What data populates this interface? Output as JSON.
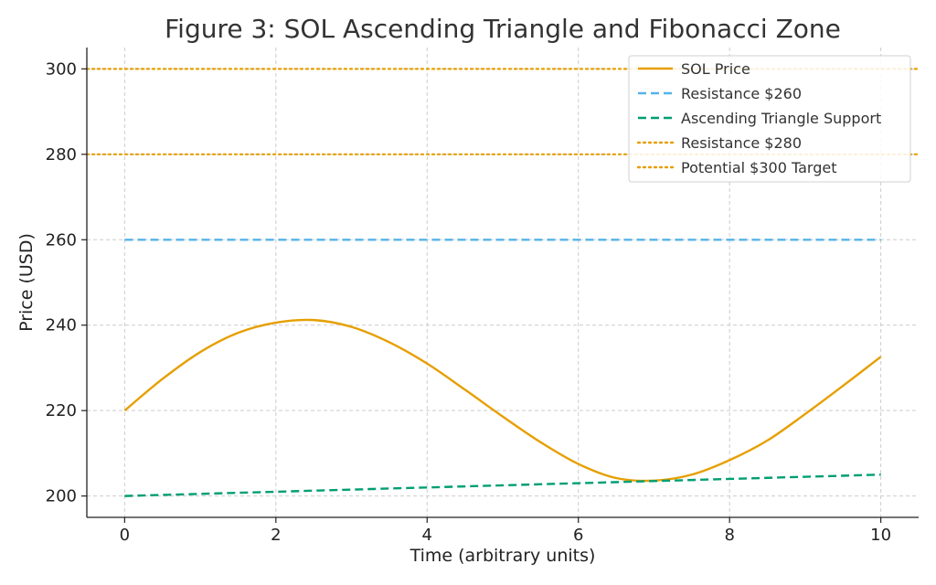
{
  "chart_data": {
    "type": "line",
    "title": "Figure 3: SOL Ascending Triangle and Fibonacci Zone",
    "xlabel": "Time (arbitrary units)",
    "ylabel": "Price (USD)",
    "xlim": [
      -0.5,
      10.5
    ],
    "ylim": [
      195,
      305
    ],
    "xticks": [
      0,
      2,
      4,
      6,
      8,
      10
    ],
    "yticks": [
      200,
      220,
      240,
      260,
      280,
      300
    ],
    "grid": true,
    "legend_position": "top-right",
    "series": [
      {
        "name": "SOL Price",
        "style": "solid",
        "color": "#E69F00",
        "x": [
          0,
          0.5,
          1,
          1.5,
          2,
          2.5,
          3,
          3.5,
          4,
          4.5,
          5,
          5.5,
          6,
          6.5,
          7,
          7.5,
          8,
          8.5,
          9,
          9.5,
          10
        ],
        "y": [
          220,
          227.4,
          233.7,
          238.2,
          240.6,
          241.2,
          239.6,
          236.0,
          231.0,
          224.9,
          218.6,
          212.6,
          207.5,
          204.2,
          203.6,
          205.0,
          208.4,
          213.0,
          219.2,
          225.8,
          232.6
        ]
      },
      {
        "name": "Resistance $260",
        "style": "dashed",
        "color": "#56B4E9",
        "x": [
          0,
          10
        ],
        "y": [
          260,
          260
        ]
      },
      {
        "name": "Ascending Triangle Support",
        "style": "dashed",
        "color": "#009E73",
        "x": [
          0,
          10
        ],
        "y": [
          200,
          205
        ]
      },
      {
        "name": "Resistance $280",
        "style": "dotted",
        "color": "#E69F00",
        "x": [
          -0.5,
          10.5
        ],
        "y": [
          280,
          280
        ]
      },
      {
        "name": "Potential $300 Target",
        "style": "dotted",
        "color": "#E69F00",
        "x": [
          -0.5,
          10.5
        ],
        "y": [
          300,
          300
        ]
      }
    ]
  }
}
